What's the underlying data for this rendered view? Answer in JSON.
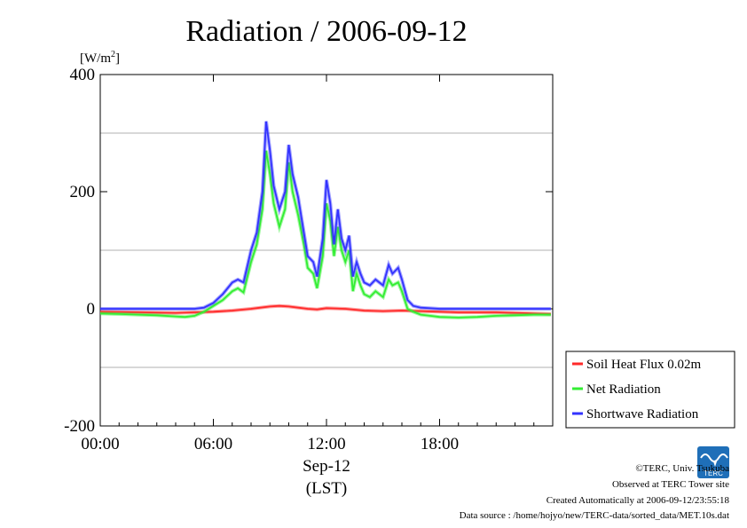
{
  "chart_data": {
    "type": "line",
    "title": "Radiation / 2006-09-12",
    "ylabel_prefix": "[W/m",
    "ylabel_sup": "2",
    "ylabel_suffix": "]",
    "xlabel_date": "Sep-12",
    "xlabel_tz": "(LST)",
    "ylim": [
      -200,
      400
    ],
    "xlim": [
      0,
      24
    ],
    "yticks": [
      -200,
      0,
      200,
      400
    ],
    "ytick_labels": [
      "-200",
      "0",
      "200",
      "400"
    ],
    "ygrid": [
      -100,
      100,
      300
    ],
    "xticks": [
      0,
      6,
      12,
      18
    ],
    "xtick_labels": [
      "00:00",
      "06:00",
      "12:00",
      "18:00"
    ],
    "grid": true,
    "legend_position": "right",
    "series": [
      {
        "name": "Soil Heat Flux 0.02m",
        "color": "#ff2a2a",
        "points": [
          [
            0,
            -5
          ],
          [
            2,
            -6
          ],
          [
            4,
            -7
          ],
          [
            5,
            -6
          ],
          [
            6,
            -5
          ],
          [
            7,
            -3
          ],
          [
            8,
            0
          ],
          [
            8.5,
            2
          ],
          [
            9,
            4
          ],
          [
            9.5,
            5
          ],
          [
            10,
            4
          ],
          [
            10.5,
            2
          ],
          [
            11,
            0
          ],
          [
            11.5,
            -1
          ],
          [
            12,
            1
          ],
          [
            13,
            0
          ],
          [
            14,
            -3
          ],
          [
            15,
            -4
          ],
          [
            16,
            -3
          ],
          [
            17,
            -4
          ],
          [
            18,
            -5
          ],
          [
            19,
            -6
          ],
          [
            20,
            -6
          ],
          [
            21,
            -6
          ],
          [
            22,
            -7
          ],
          [
            23,
            -8
          ],
          [
            23.9,
            -9
          ]
        ]
      },
      {
        "name": "Net Radiation",
        "color": "#33ee33",
        "points": [
          [
            0,
            -8
          ],
          [
            1,
            -9
          ],
          [
            2,
            -10
          ],
          [
            3,
            -11
          ],
          [
            4,
            -13
          ],
          [
            4.5,
            -14
          ],
          [
            5,
            -12
          ],
          [
            5.5,
            -5
          ],
          [
            6,
            5
          ],
          [
            6.5,
            15
          ],
          [
            7,
            30
          ],
          [
            7.3,
            35
          ],
          [
            7.6,
            28
          ],
          [
            8,
            80
          ],
          [
            8.3,
            110
          ],
          [
            8.6,
            170
          ],
          [
            8.8,
            270
          ],
          [
            9,
            230
          ],
          [
            9.2,
            180
          ],
          [
            9.5,
            140
          ],
          [
            9.8,
            170
          ],
          [
            10,
            250
          ],
          [
            10.2,
            200
          ],
          [
            10.5,
            160
          ],
          [
            10.8,
            110
          ],
          [
            11,
            70
          ],
          [
            11.3,
            60
          ],
          [
            11.5,
            35
          ],
          [
            11.8,
            90
          ],
          [
            12,
            180
          ],
          [
            12.2,
            150
          ],
          [
            12.4,
            90
          ],
          [
            12.6,
            140
          ],
          [
            12.8,
            100
          ],
          [
            13,
            80
          ],
          [
            13.2,
            100
          ],
          [
            13.4,
            30
          ],
          [
            13.6,
            60
          ],
          [
            13.8,
            40
          ],
          [
            14,
            25
          ],
          [
            14.3,
            20
          ],
          [
            14.6,
            30
          ],
          [
            15,
            20
          ],
          [
            15.3,
            50
          ],
          [
            15.5,
            40
          ],
          [
            15.8,
            45
          ],
          [
            16,
            30
          ],
          [
            16.3,
            0
          ],
          [
            16.6,
            -5
          ],
          [
            17,
            -10
          ],
          [
            17.5,
            -12
          ],
          [
            18,
            -14
          ],
          [
            19,
            -15
          ],
          [
            20,
            -14
          ],
          [
            21,
            -12
          ],
          [
            22,
            -11
          ],
          [
            23,
            -10
          ],
          [
            23.9,
            -10
          ]
        ]
      },
      {
        "name": "Shortwave Radiation",
        "color": "#3333ff",
        "points": [
          [
            0,
            0
          ],
          [
            2,
            0
          ],
          [
            4,
            0
          ],
          [
            5,
            0
          ],
          [
            5.5,
            2
          ],
          [
            6,
            10
          ],
          [
            6.5,
            25
          ],
          [
            7,
            45
          ],
          [
            7.3,
            50
          ],
          [
            7.6,
            45
          ],
          [
            8,
            100
          ],
          [
            8.3,
            130
          ],
          [
            8.6,
            200
          ],
          [
            8.8,
            320
          ],
          [
            9,
            270
          ],
          [
            9.2,
            210
          ],
          [
            9.5,
            170
          ],
          [
            9.8,
            200
          ],
          [
            10,
            280
          ],
          [
            10.2,
            230
          ],
          [
            10.5,
            190
          ],
          [
            10.8,
            130
          ],
          [
            11,
            90
          ],
          [
            11.3,
            80
          ],
          [
            11.5,
            55
          ],
          [
            11.8,
            120
          ],
          [
            12,
            220
          ],
          [
            12.2,
            180
          ],
          [
            12.4,
            110
          ],
          [
            12.6,
            170
          ],
          [
            12.8,
            120
          ],
          [
            13,
            100
          ],
          [
            13.2,
            125
          ],
          [
            13.4,
            55
          ],
          [
            13.6,
            80
          ],
          [
            13.8,
            60
          ],
          [
            14,
            45
          ],
          [
            14.3,
            40
          ],
          [
            14.6,
            50
          ],
          [
            15,
            40
          ],
          [
            15.3,
            75
          ],
          [
            15.5,
            60
          ],
          [
            15.8,
            70
          ],
          [
            16,
            50
          ],
          [
            16.3,
            15
          ],
          [
            16.6,
            5
          ],
          [
            17,
            2
          ],
          [
            18,
            0
          ],
          [
            20,
            0
          ],
          [
            22,
            0
          ],
          [
            23.9,
            0
          ]
        ]
      }
    ]
  },
  "footer": {
    "copyright": "©TERC, Univ. Tsukuba",
    "site": "Observed at TERC Tower site",
    "created": "Created Automatically at 2006-09-12/23:55:18",
    "source": "Data source : /home/hojyo/new/TERC-data/sorted_data/MET.10s.dat",
    "logo_text": "TERC"
  }
}
